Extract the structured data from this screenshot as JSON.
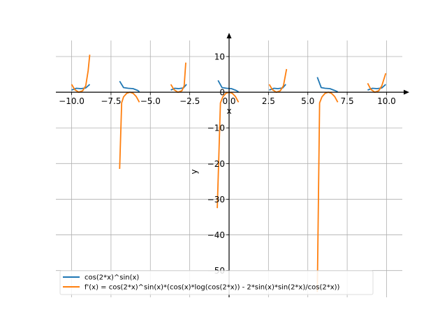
{
  "chart_data": {
    "type": "line",
    "xlabel": "x",
    "ylabel": "y",
    "xlim": [
      -11.0,
      11.0
    ],
    "ylim": [
      -57.5,
      14.5
    ],
    "x_ticks": [
      -10.0,
      -7.5,
      -5.0,
      -2.5,
      0.0,
      2.5,
      5.0,
      7.5,
      10.0
    ],
    "x_tick_labels": [
      "−10.0",
      "−7.5",
      "−5.0",
      "−2.5",
      "0.0",
      "2.5",
      "5.0",
      "7.5",
      "10.0"
    ],
    "y_ticks": [
      10,
      0,
      -10,
      -20,
      -30,
      -40,
      -50
    ],
    "y_tick_labels": [
      "10",
      "0",
      "−10",
      "−20",
      "−30",
      "−40",
      "−50"
    ],
    "grid": true,
    "legend_position": "lower-left",
    "series": [
      {
        "name": "cos(2*x)^sin(x)",
        "color": "#1f77b4",
        "segments": [
          [
            [
              -10.0,
              0.6
            ],
            [
              -9.7,
              1.1
            ],
            [
              -9.4,
              1.0
            ],
            [
              -9.1,
              1.2
            ],
            [
              -8.85,
              2.2
            ]
          ],
          [
            [
              -6.95,
              3.1
            ],
            [
              -6.7,
              1.3
            ],
            [
              -6.4,
              1.1
            ],
            [
              -6.1,
              1.0
            ],
            [
              -5.8,
              0.5
            ],
            [
              -5.7,
              0.1
            ]
          ],
          [
            [
              -3.7,
              0.6
            ],
            [
              -3.45,
              1.1
            ],
            [
              -3.2,
              1.0
            ],
            [
              -2.9,
              1.2
            ],
            [
              -2.7,
              2.2
            ]
          ],
          [
            [
              -0.7,
              3.3
            ],
            [
              -0.45,
              1.3
            ],
            [
              -0.15,
              1.1
            ],
            [
              0.15,
              1.0
            ],
            [
              0.45,
              0.5
            ],
            [
              0.6,
              0.1
            ]
          ],
          [
            [
              2.55,
              0.6
            ],
            [
              2.85,
              1.1
            ],
            [
              3.1,
              1.0
            ],
            [
              3.4,
              1.2
            ],
            [
              3.6,
              2.2
            ]
          ],
          [
            [
              5.6,
              4.2
            ],
            [
              5.85,
              1.3
            ],
            [
              6.1,
              1.1
            ],
            [
              6.4,
              1.0
            ],
            [
              6.7,
              0.5
            ],
            [
              6.9,
              0.1
            ]
          ],
          [
            [
              8.8,
              0.6
            ],
            [
              9.1,
              1.1
            ],
            [
              9.4,
              1.0
            ],
            [
              9.7,
              1.2
            ],
            [
              9.95,
              2.2
            ]
          ]
        ]
      },
      {
        "name": "f'(x) = cos(2*x)^sin(x)*(cos(x)*log(cos(2*x)) - 2*sin(x)*sin(2*x)/cos(2*x))",
        "color": "#ff7f0e",
        "segments": [
          [
            [
              -10.0,
              2.2
            ],
            [
              -9.8,
              0.7
            ],
            [
              -9.55,
              0.0
            ],
            [
              -9.3,
              0.4
            ],
            [
              -9.1,
              1.8
            ],
            [
              -8.95,
              6.0
            ],
            [
              -8.85,
              10.5
            ]
          ],
          [
            [
              -6.95,
              -21.5
            ],
            [
              -6.82,
              -3.0
            ],
            [
              -6.7,
              -1.3
            ],
            [
              -6.5,
              -0.3
            ],
            [
              -6.3,
              0.0
            ],
            [
              -6.1,
              -0.3
            ],
            [
              -5.9,
              -1.2
            ],
            [
              -5.7,
              -2.8
            ]
          ],
          [
            [
              -3.7,
              2.2
            ],
            [
              -3.5,
              0.7
            ],
            [
              -3.25,
              0.0
            ],
            [
              -3.0,
              0.4
            ],
            [
              -2.85,
              1.8
            ],
            [
              -2.75,
              8.3
            ]
          ],
          [
            [
              -0.75,
              -32.5
            ],
            [
              -0.55,
              -3.0
            ],
            [
              -0.4,
              -1.3
            ],
            [
              -0.2,
              -0.3
            ],
            [
              0.0,
              0.0
            ],
            [
              0.2,
              -0.3
            ],
            [
              0.4,
              -1.2
            ],
            [
              0.6,
              -2.8
            ]
          ],
          [
            [
              2.55,
              2.2
            ],
            [
              2.75,
              0.7
            ],
            [
              3.0,
              0.0
            ],
            [
              3.25,
              0.4
            ],
            [
              3.45,
              1.8
            ],
            [
              3.65,
              6.5
            ]
          ],
          [
            [
              5.6,
              -56.0
            ],
            [
              5.75,
              -3.0
            ],
            [
              5.9,
              -1.3
            ],
            [
              6.1,
              -0.3
            ],
            [
              6.3,
              0.0
            ],
            [
              6.5,
              -0.3
            ],
            [
              6.7,
              -1.2
            ],
            [
              6.9,
              -2.8
            ]
          ],
          [
            [
              8.8,
              2.5
            ],
            [
              9.0,
              0.8
            ],
            [
              9.25,
              0.0
            ],
            [
              9.5,
              0.4
            ],
            [
              9.7,
              1.8
            ],
            [
              9.95,
              5.3
            ]
          ]
        ]
      }
    ]
  }
}
